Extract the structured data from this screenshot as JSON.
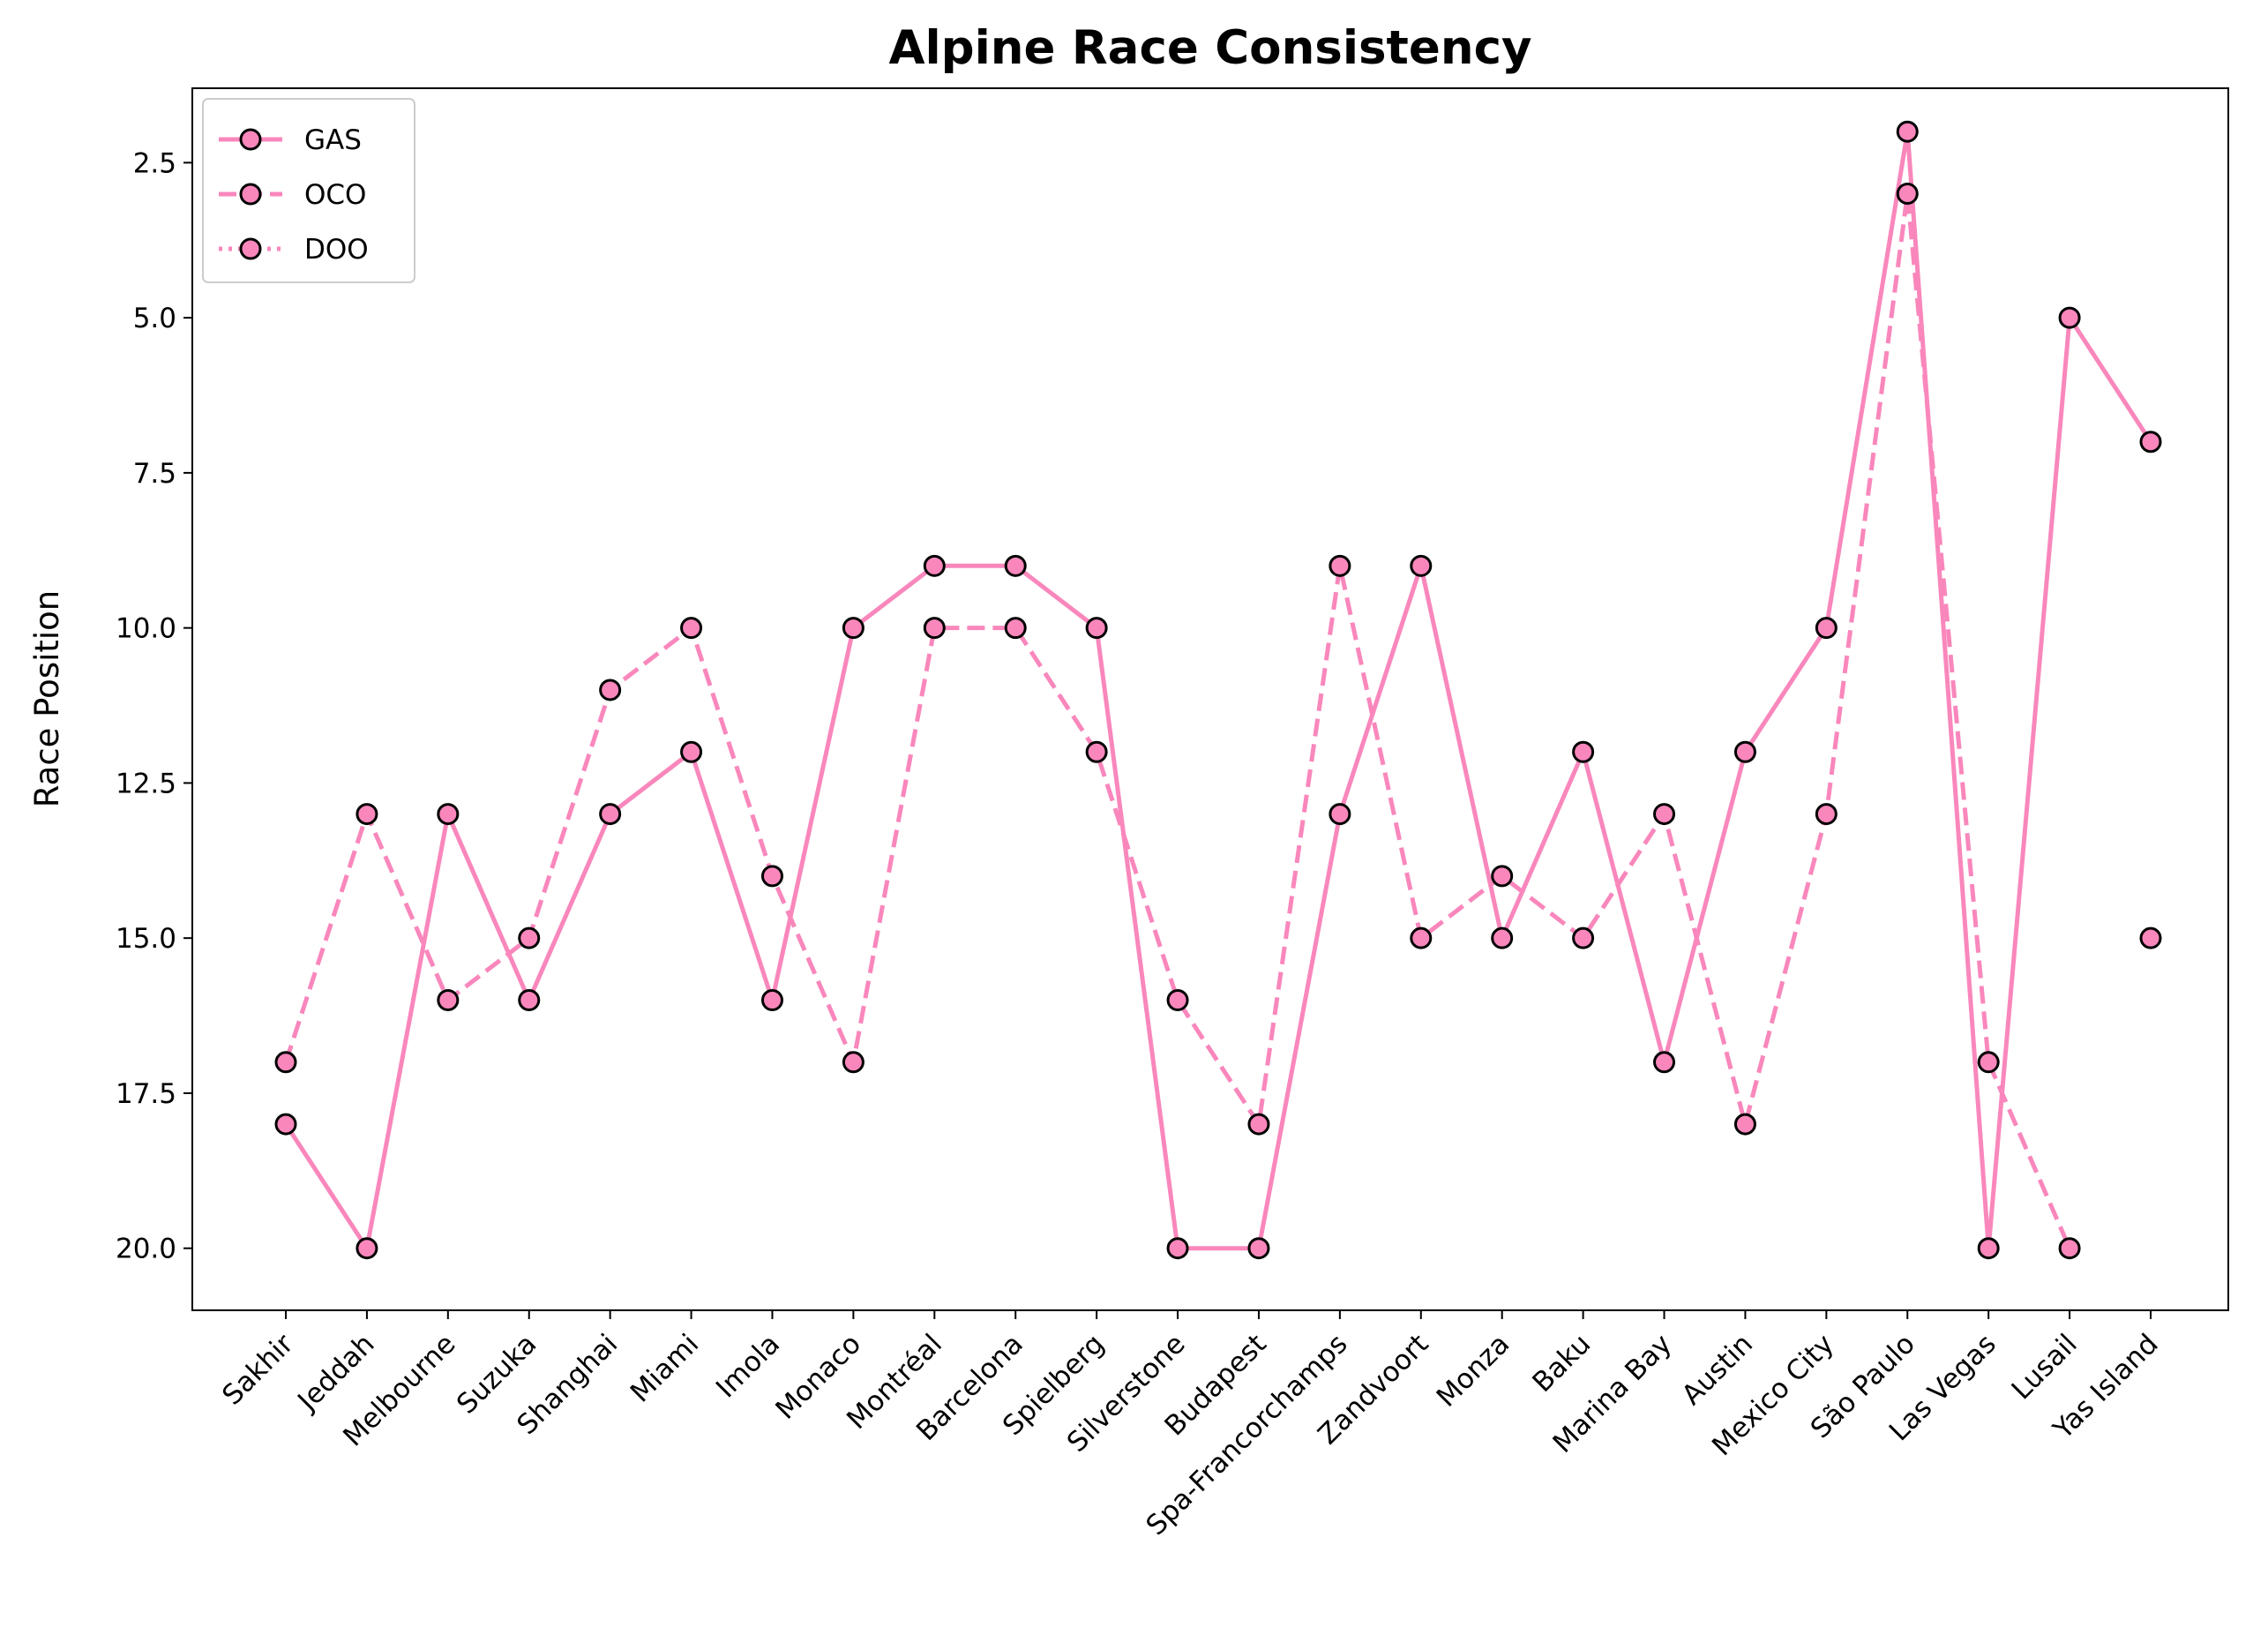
{
  "chart_data": {
    "type": "line",
    "title": "Alpine Race Consistency",
    "xlabel": "",
    "ylabel": "Race Position",
    "y_inverted": true,
    "ylim": [
      21,
      1.3
    ],
    "yticks": [
      "2.5",
      "5.0",
      "7.5",
      "10.0",
      "12.5",
      "15.0",
      "17.5",
      "20.0"
    ],
    "grid": false,
    "legend_position": "top-left",
    "categories": [
      "Sakhir",
      "Jeddah",
      "Melbourne",
      "Suzuka",
      "Shanghai",
      "Miami",
      "Imola",
      "Monaco",
      "Montréal",
      "Barcelona",
      "Spielberg",
      "Silverstone",
      "Budapest",
      "Spa-Francorchamps",
      "Zandvoort",
      "Monza",
      "Baku",
      "Marina Bay",
      "Austin",
      "Mexico City",
      "São Paulo",
      "Las Vegas",
      "Lusail",
      "Yas Island"
    ],
    "series": [
      {
        "name": "GAS",
        "line_style": "solid",
        "color": "#f987bc",
        "values": [
          18,
          20,
          13,
          16,
          13,
          12,
          16,
          10,
          9,
          9,
          10,
          20,
          20,
          13,
          9,
          15,
          12,
          17,
          12,
          10,
          2,
          20,
          5,
          7
        ]
      },
      {
        "name": "OCO",
        "line_style": "dashed",
        "color": "#f987bc",
        "values": [
          17,
          13,
          16,
          15,
          11,
          10,
          14,
          17,
          10,
          10,
          12,
          16,
          18,
          9,
          15,
          14,
          15,
          13,
          18,
          13,
          3,
          17,
          20,
          null
        ]
      },
      {
        "name": "DOO",
        "line_style": "dotted",
        "color": "#f987bc",
        "values": [
          null,
          null,
          null,
          null,
          null,
          null,
          null,
          null,
          null,
          null,
          null,
          null,
          null,
          null,
          null,
          null,
          null,
          null,
          null,
          null,
          null,
          null,
          null,
          15
        ]
      }
    ]
  }
}
